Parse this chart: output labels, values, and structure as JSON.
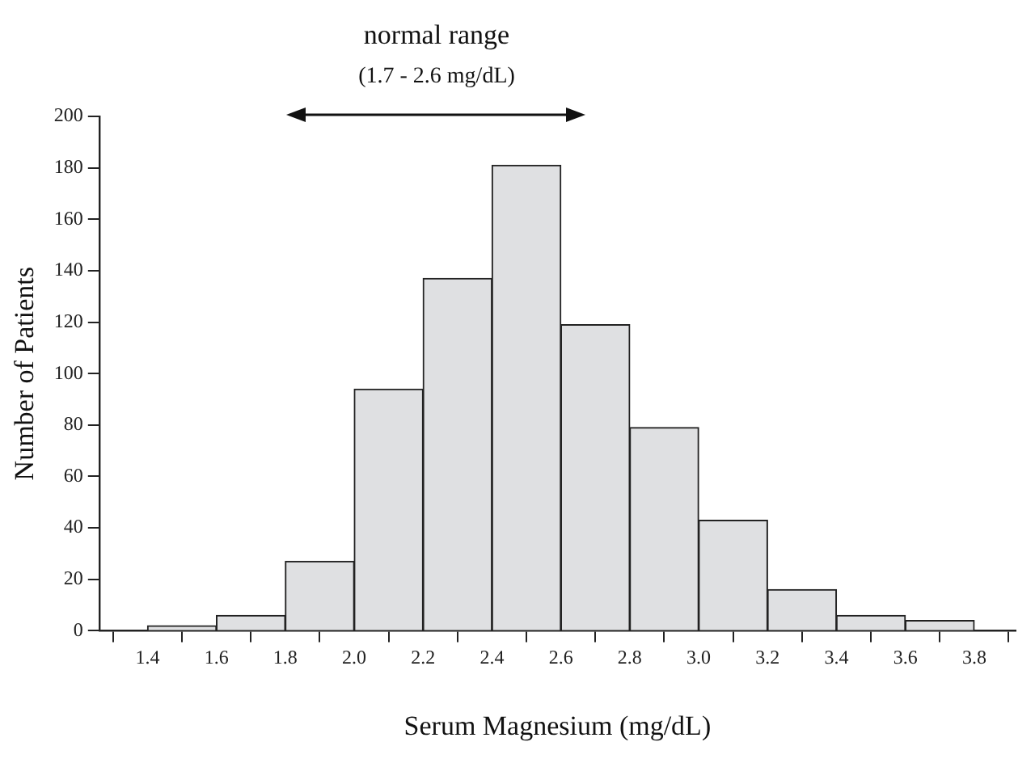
{
  "chart_data": {
    "type": "histogram",
    "xlabel": "Serum Magnesium (mg/dL)",
    "ylabel": "Number of Patients",
    "bins": [
      1.4,
      1.6,
      1.8,
      2.0,
      2.2,
      2.4,
      2.6,
      2.8,
      3.0,
      3.2,
      3.4,
      3.6,
      3.8
    ],
    "values": [
      2,
      6,
      27,
      94,
      137,
      181,
      119,
      79,
      43,
      16,
      6,
      4
    ],
    "color": "#dfe0e2",
    "xlim": [
      1.26,
      3.92
    ],
    "xticks": [
      {
        "value": 1.4,
        "label": "1.4"
      },
      {
        "value": 1.6,
        "label": "1.6"
      },
      {
        "value": 1.8,
        "label": "1.8"
      },
      {
        "value": 2.0,
        "label": "2.0"
      },
      {
        "value": 2.2,
        "label": "2.2"
      },
      {
        "value": 2.4,
        "label": "2.4"
      },
      {
        "value": 2.6,
        "label": "2.6"
      },
      {
        "value": 2.8,
        "label": "2.8"
      },
      {
        "value": 3.0,
        "label": "3.0"
      },
      {
        "value": 3.2,
        "label": "3.2"
      },
      {
        "value": 3.4,
        "label": "3.4"
      },
      {
        "value": 3.6,
        "label": "3.6"
      },
      {
        "value": 3.8,
        "label": "3.8"
      }
    ],
    "ylim": [
      0,
      200
    ],
    "yticks": [
      0,
      20,
      40,
      60,
      80,
      100,
      120,
      140,
      160,
      180,
      200
    ],
    "annotations": [
      "normal range",
      "(1.7 - 2.6 mg/dL)"
    ],
    "grid": false,
    "legend": false
  }
}
